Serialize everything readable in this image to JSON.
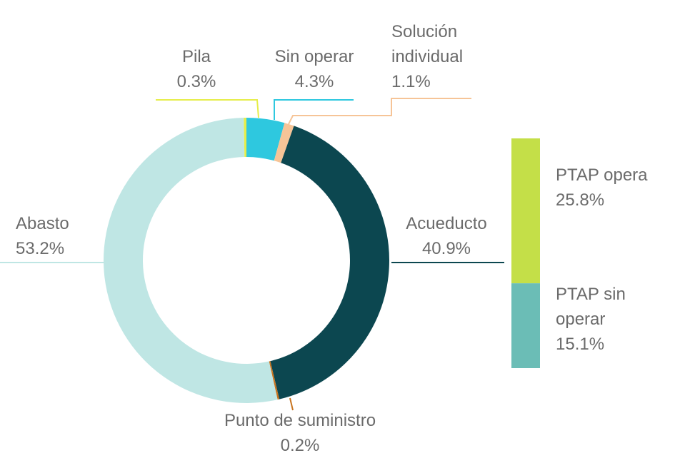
{
  "chart_data": [
    {
      "type": "donut",
      "categories": [
        "Sin operar",
        "Solución individual",
        "Acueducto",
        "Punto de suministro",
        "Abasto",
        "Pila"
      ],
      "values": [
        4.3,
        1.1,
        40.9,
        0.2,
        53.2,
        0.3
      ],
      "value_labels": [
        "4.3%",
        "1.1%",
        "40.9%",
        "0.2%",
        "53.2%",
        "0.3%"
      ],
      "colors": [
        "#2ec8df",
        "#f6c497",
        "#0c4750",
        "#c8741f",
        "#bfe6e4",
        "#e6ee4b"
      ]
    },
    {
      "type": "stacked-bar",
      "categories": [
        "PTAP opera",
        "PTAP sin operar"
      ],
      "values": [
        25.8,
        15.1
      ],
      "value_labels": [
        "25.8%",
        "15.1%"
      ],
      "colors": [
        "#c4df48",
        "#6bbdb6"
      ]
    }
  ]
}
